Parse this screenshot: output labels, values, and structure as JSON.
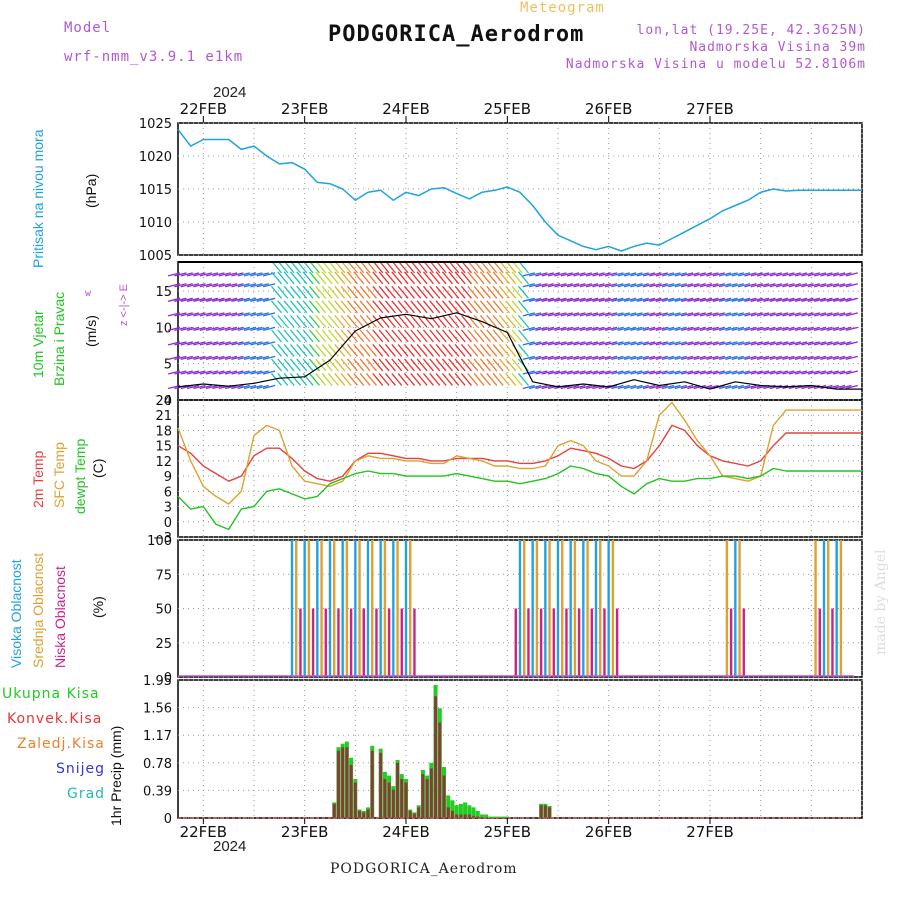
{
  "header": {
    "model_label": "Model",
    "model_name": "wrf-nmm_v3.9.1 e1km",
    "meteogram_label": "Meteogram",
    "station_title": "PODGORICA_Aerodrom",
    "lonlat": "lon,lat (19.25E, 42.3625N)",
    "elevation": "Nadmorska Visina 39m",
    "model_elevation": "Nadmorska Visina u modelu 52.8106m",
    "year_top": "2024",
    "year_bottom": "2024",
    "station_bottom": "PODGORICA_Aerodrom",
    "watermark": "made by Angel"
  },
  "date_labels": [
    "22FEB",
    "23FEB",
    "24FEB",
    "25FEB",
    "26FEB",
    "27FEB"
  ],
  "panel_labels": {
    "pressure": {
      "name": "Pritisak na nivou mora",
      "unit": "(hPa)"
    },
    "wind": {
      "name1": "10m Vjetar",
      "name2": "Brzina i Pravac",
      "unit": "(m/s)",
      "compass": "z  <-|->  E",
      "compass2": "w",
      "compass3": "s"
    },
    "temp": {
      "name1": "2m Temp",
      "name2": "SFC Temp",
      "name3": "dewpt Temp",
      "unit": "(C)"
    },
    "cloud": {
      "name1": "Visoka Oblacnost",
      "name2": "Srednja Oblacnost",
      "name3": "Niska Oblacnost",
      "unit": "(%)"
    },
    "precip": {
      "unit": "1hr Precip (mm)"
    }
  },
  "precip_legend": [
    {
      "label": "Ukupna Kisa",
      "color": "#22cc22"
    },
    {
      "label": "Konvek.Kisa",
      "color": "#ee3333"
    },
    {
      "label": "Zaledj.Kisa",
      "color": "#f08030"
    },
    {
      "label": "Snijeg",
      "color": "#3333dd"
    },
    {
      "label": "Grad",
      "color": "#22bbaa"
    }
  ],
  "colors": {
    "pressure": "#1fa3e0",
    "t2m": "#e64040",
    "tsfc": "#e0a030",
    "dewpt": "#22c422",
    "cloud_high": "#1fa3e0",
    "cloud_mid": "#e0a030",
    "cloud_low": "#cc2288",
    "precip_total": "#22cc22",
    "precip_conv": "#8b3a3a"
  },
  "chart_data": [
    {
      "type": "line",
      "panel": "pressure",
      "ylabel": "(hPa)",
      "ylim": [
        1005,
        1025
      ],
      "yticks": [
        1005,
        1010,
        1015,
        1020,
        1025
      ],
      "x_hours": [
        0,
        3,
        6,
        9,
        12,
        15,
        18,
        21,
        24,
        27,
        30,
        33,
        36,
        39,
        42,
        45,
        48,
        51,
        54,
        57,
        60,
        63,
        66,
        69,
        72,
        75,
        78,
        81,
        84,
        87,
        90,
        96,
        99,
        102,
        105,
        108,
        111,
        114,
        117,
        120,
        123,
        126,
        129,
        132,
        135,
        138,
        141,
        144,
        147,
        150,
        153,
        156,
        159,
        162
      ],
      "values": [
        1024,
        1021.5,
        1022.5,
        1022.5,
        1022.5,
        1021,
        1021.5,
        1020,
        1018.8,
        1019,
        1018,
        1016,
        1015.8,
        1015,
        1013.3,
        1014.5,
        1014.8,
        1013.3,
        1014.5,
        1014,
        1015,
        1015.2,
        1014.3,
        1013.5,
        1014.5,
        1014.8,
        1015.3,
        1014.5,
        1012.5,
        1010,
        1008,
        1006.3,
        1005.8,
        1006.3,
        1005.6,
        1006.3,
        1006.8,
        1006.5,
        1007.5,
        1008.5,
        1009.5,
        1010.5,
        1011.7,
        1012.5,
        1013.3,
        1014.5,
        1015,
        1014.7,
        1014.8,
        1014.8,
        1014.8,
        1014.8,
        1014.8,
        1014.8
      ]
    },
    {
      "type": "line",
      "panel": "wind",
      "ylabel": "(m/s)",
      "ylim": [
        0,
        19
      ],
      "yticks": [
        0,
        5,
        10,
        15
      ],
      "x_hours": [
        0,
        6,
        12,
        18,
        24,
        30,
        36,
        42,
        48,
        54,
        60,
        66,
        72,
        78,
        84,
        90,
        96,
        102,
        108,
        114,
        120,
        126,
        132,
        138,
        144,
        150,
        156,
        162
      ],
      "values": [
        1.8,
        2.2,
        1.9,
        2.3,
        3.0,
        3.2,
        5.5,
        9.5,
        11.3,
        11.8,
        11.2,
        12.0,
        10.8,
        9.3,
        2.5,
        1.8,
        2.2,
        1.8,
        2.8,
        2.0,
        2.5,
        1.5,
        2.5,
        2.0,
        1.8,
        2.0,
        1.5,
        1.5
      ]
    },
    {
      "type": "line",
      "panel": "temperature",
      "ylabel": "(C)",
      "ylim": [
        -3,
        24
      ],
      "yticks": [
        -3,
        0,
        3,
        6,
        9,
        12,
        15,
        18,
        21,
        24
      ],
      "x_hours": [
        0,
        3,
        6,
        9,
        12,
        15,
        18,
        21,
        24,
        27,
        30,
        33,
        36,
        39,
        42,
        45,
        48,
        51,
        54,
        57,
        60,
        63,
        66,
        69,
        72,
        75,
        78,
        81,
        84,
        87,
        90,
        93,
        96,
        99,
        102,
        105,
        108,
        111,
        114,
        117,
        120,
        123,
        126,
        129,
        132,
        135,
        138,
        141,
        144,
        147,
        150,
        153,
        156,
        159,
        162
      ],
      "series": [
        {
          "name": "2m Temp",
          "values": [
            15,
            13.5,
            11,
            9.5,
            8,
            9,
            13,
            14.5,
            14.5,
            12.5,
            10,
            8.5,
            8,
            9,
            12,
            13.5,
            13.5,
            13,
            12.5,
            12.5,
            12,
            12,
            12.5,
            12.5,
            12.5,
            12,
            12,
            11.5,
            11.5,
            12,
            13,
            14.5,
            14,
            13.5,
            12.5,
            11,
            10.5,
            12,
            15,
            19,
            18,
            15,
            13,
            12,
            11.5,
            11,
            12,
            15,
            17.5,
            17.5,
            17.5,
            17.5,
            17.5,
            17.5,
            17.5
          ]
        },
        {
          "name": "SFC Temp",
          "values": [
            18.5,
            12,
            7,
            5,
            3.5,
            6,
            17,
            19,
            18,
            11,
            8,
            7.5,
            7,
            8,
            12,
            13,
            12.5,
            12.5,
            12,
            12,
            11.5,
            11.5,
            13,
            12.5,
            12,
            11,
            11,
            10.5,
            10.5,
            11,
            15,
            16,
            15,
            12,
            11,
            9,
            9,
            12,
            21,
            23.5,
            20,
            16,
            13,
            9,
            8.5,
            8,
            9,
            19,
            22,
            22,
            22,
            22,
            22,
            22,
            22
          ]
        },
        {
          "name": "dewpt Temp",
          "values": [
            5,
            2.5,
            3,
            -0.5,
            -1.5,
            2.5,
            3,
            6,
            6.5,
            5.5,
            4.5,
            5,
            7.5,
            8.5,
            9.5,
            10,
            9.5,
            9.5,
            9,
            9,
            9,
            9,
            9.5,
            9,
            8.5,
            8,
            8,
            7.5,
            8,
            8.5,
            9.5,
            11,
            10.5,
            9.5,
            9,
            7,
            5.5,
            7.5,
            8.5,
            8,
            8,
            8.5,
            8.5,
            9,
            9,
            8.5,
            9,
            10.5,
            10,
            10,
            10,
            10,
            10,
            10,
            10
          ]
        }
      ]
    },
    {
      "type": "bar",
      "panel": "cloud",
      "ylabel": "(%)",
      "ylim": [
        0,
        100
      ],
      "yticks": [
        0,
        25,
        50,
        75,
        100
      ],
      "description_windows_hours": [
        [
          27,
          44
        ],
        [
          44,
          56
        ],
        [
          80,
          104
        ],
        [
          130,
          134
        ],
        [
          151,
          157
        ]
      ],
      "series": [
        {
          "name": "Visoka Oblacnost",
          "level": 100
        },
        {
          "name": "Srednja Oblacnost",
          "level": 100
        },
        {
          "name": "Niska Oblacnost",
          "level": 50
        }
      ]
    },
    {
      "type": "bar",
      "panel": "precip",
      "ylabel": "1hr Precip (mm)",
      "ylim": [
        0,
        1.95
      ],
      "yticks": [
        0,
        0.39,
        0.78,
        1.17,
        1.56,
        1.95
      ],
      "x_hours": [
        37,
        38,
        39,
        40,
        41,
        42,
        43,
        44,
        45,
        46,
        48,
        49,
        50,
        51,
        52,
        53,
        54,
        55,
        56,
        57,
        58,
        59,
        60,
        61,
        62,
        63,
        64,
        65,
        66,
        67,
        68,
        69,
        70,
        71,
        72,
        73,
        74,
        75,
        76,
        77,
        78,
        86,
        87,
        88
      ],
      "series": [
        {
          "name": "Ukupna Kisa",
          "values": [
            0.22,
            1.0,
            1.05,
            1.08,
            0.85,
            0.55,
            0.12,
            0.1,
            0.15,
            1.02,
            0.98,
            0.65,
            0.6,
            0.45,
            0.82,
            0.62,
            0.55,
            0.12,
            0.08,
            0.18,
            0.68,
            0.6,
            0.78,
            1.88,
            1.55,
            0.72,
            0.32,
            0.25,
            0.18,
            0.2,
            0.22,
            0.18,
            0.15,
            0.1,
            0.05,
            0.05,
            0.02,
            0.02,
            0.02,
            0.02,
            0.02,
            0.2,
            0.2,
            0.17
          ]
        },
        {
          "name": "Konvek.Kisa",
          "values": [
            0.2,
            0.95,
            1.0,
            1.0,
            0.75,
            0.5,
            0.1,
            0.08,
            0.12,
            0.95,
            0.92,
            0.55,
            0.5,
            0.4,
            0.78,
            0.55,
            0.5,
            0.1,
            0.06,
            0.15,
            0.62,
            0.55,
            0.7,
            1.72,
            1.35,
            0.6,
            0.15,
            0.1,
            0.05,
            0.05,
            0.05,
            0.05,
            0.03,
            0.02,
            0.01,
            0.01,
            0,
            0,
            0,
            0,
            0,
            0.18,
            0.18,
            0.15
          ]
        }
      ]
    }
  ]
}
